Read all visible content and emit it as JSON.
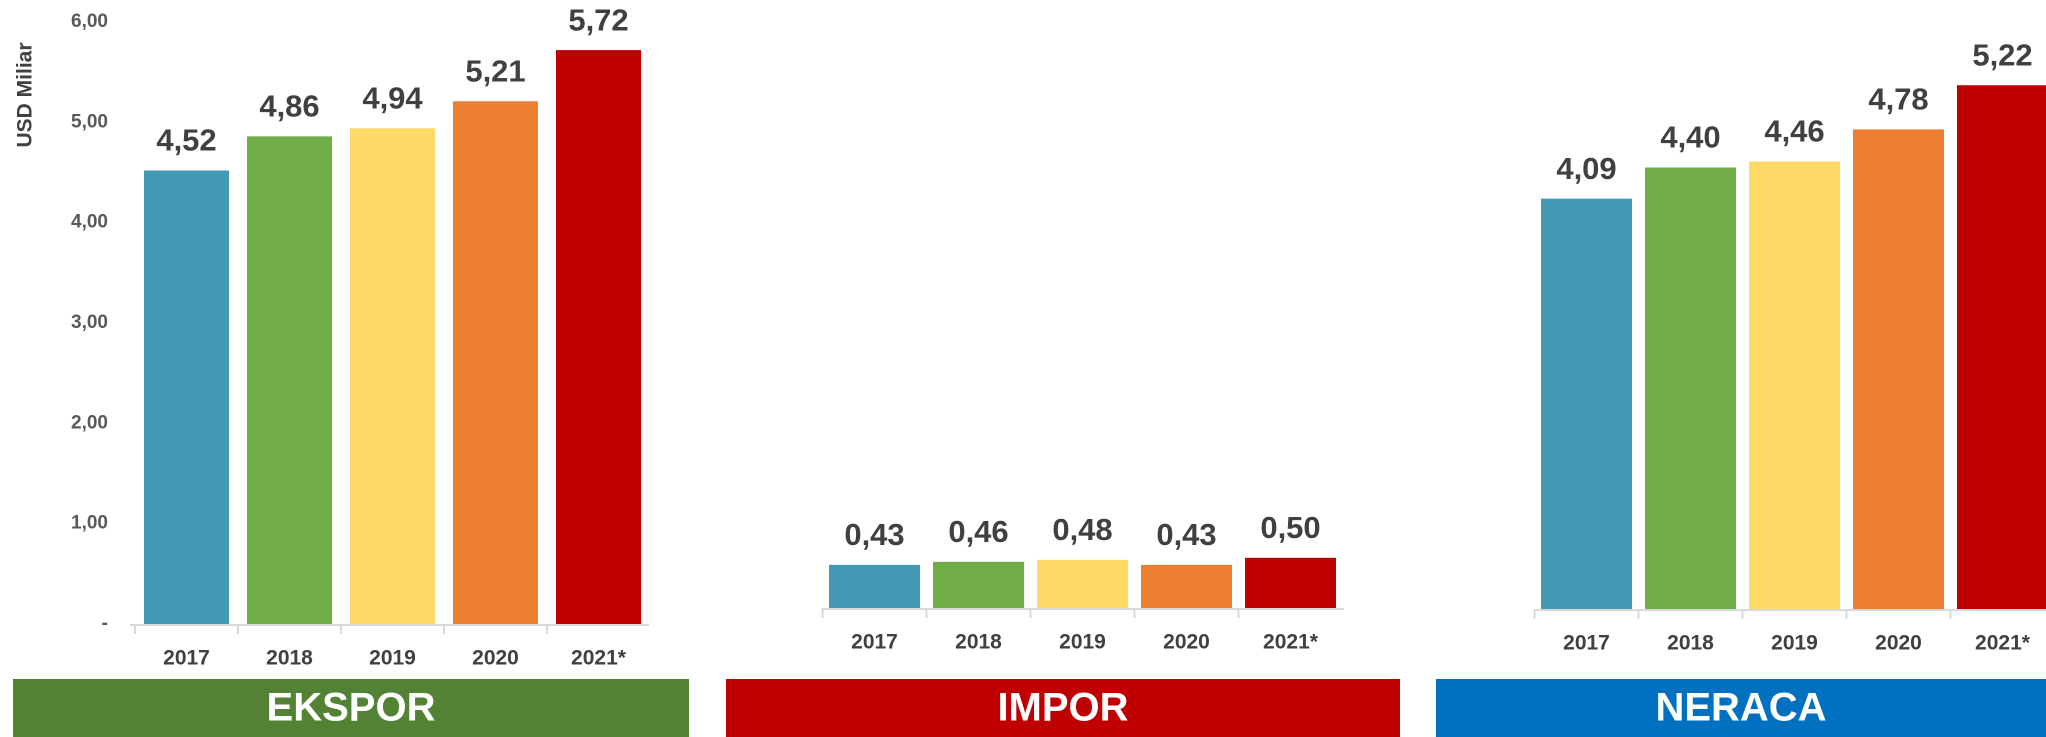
{
  "chart_data": [
    {
      "type": "bar",
      "banner": "EKSPOR",
      "banner_color": "#548235",
      "y_label": "USD Miliar",
      "categories": [
        "2017",
        "2018",
        "2019",
        "2020",
        "2021*"
      ],
      "values": [
        4.52,
        4.86,
        4.94,
        5.21,
        5.72
      ],
      "value_labels": [
        "4,52",
        "4,86",
        "4,94",
        "5,21",
        "5,72"
      ],
      "colors": [
        "#4299b4",
        "#70ad47",
        "#ffd966",
        "#ed7d31",
        "#c00000"
      ],
      "ylim": [
        0,
        6
      ],
      "yticks": [
        {
          "value": 0,
          "label": "-"
        },
        {
          "value": 1,
          "label": "1,00"
        },
        {
          "value": 2,
          "label": "2,00"
        },
        {
          "value": 3,
          "label": "3,00"
        },
        {
          "value": 4,
          "label": "4,00"
        },
        {
          "value": 5,
          "label": "5,00"
        },
        {
          "value": 6,
          "label": "6,00"
        }
      ]
    },
    {
      "type": "bar",
      "banner": "IMPOR",
      "banner_color": "#c00000",
      "categories": [
        "2017",
        "2018",
        "2019",
        "2020",
        "2021*"
      ],
      "values": [
        0.43,
        0.46,
        0.48,
        0.43,
        0.5
      ],
      "value_labels": [
        "0,43",
        "0,46",
        "0,48",
        "0,43",
        "0,50"
      ],
      "colors": [
        "#4299b4",
        "#70ad47",
        "#ffd966",
        "#ed7d31",
        "#c00000"
      ],
      "ylim": [
        0,
        6
      ]
    },
    {
      "type": "bar",
      "banner": "NERACA",
      "banner_color": "#0070c0",
      "categories": [
        "2017",
        "2018",
        "2019",
        "2020",
        "2021*"
      ],
      "values": [
        4.09,
        4.4,
        4.46,
        4.78,
        5.22
      ],
      "value_labels": [
        "4,09",
        "4,40",
        "4,46",
        "4,78",
        "5,22"
      ],
      "colors": [
        "#4299b4",
        "#70ad47",
        "#ffd966",
        "#ed7d31",
        "#c00000"
      ],
      "ylim": [
        0,
        6
      ]
    }
  ]
}
